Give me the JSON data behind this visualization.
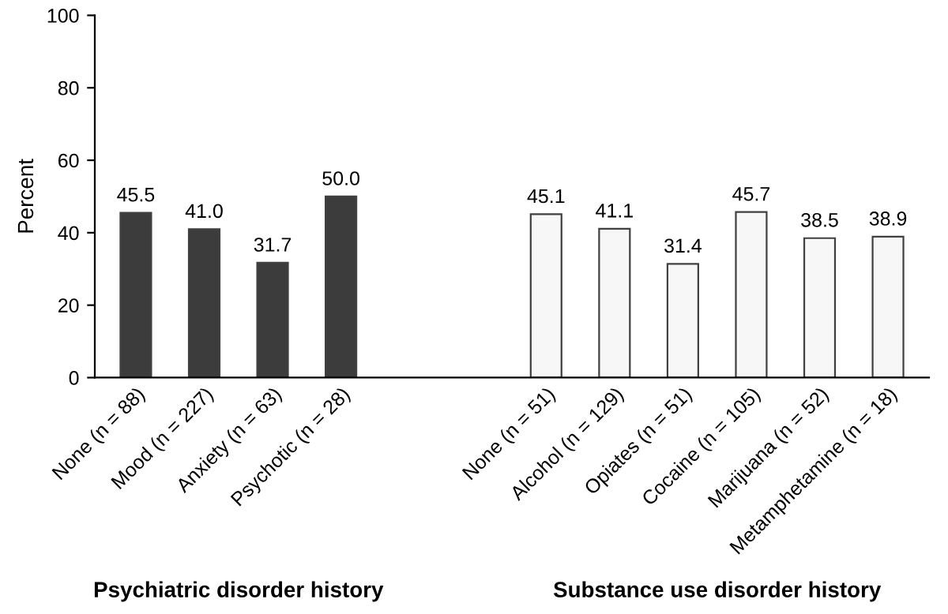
{
  "chart_data": {
    "type": "bar",
    "ylabel": "Percent",
    "categories": [
      "None (n = 88)",
      "Mood (n = 227)",
      "Anxiety (n = 63)",
      "Psychotic (n = 28)",
      null,
      null,
      "None (n = 51)",
      "Alcohol (n = 129)",
      "Opiates (n = 51)",
      "Cocaine (n = 105)",
      "Marijuana (n = 52)",
      "Metamphetamine (n = 18)"
    ],
    "values": [
      45.5,
      41.0,
      31.7,
      50.0,
      null,
      null,
      45.1,
      41.1,
      31.4,
      45.7,
      38.5,
      38.9
    ],
    "value_labels": [
      "45.5",
      "41.0",
      "31.7",
      "50.0",
      null,
      null,
      "45.1",
      "41.1",
      "31.4",
      "45.7",
      "38.5",
      "38.9"
    ],
    "colors": [
      "#3c3c3c",
      "#3c3c3c",
      "#3c3c3c",
      "#3c3c3c",
      null,
      null,
      "#f7f7f7",
      "#f7f7f7",
      "#f7f7f7",
      "#f7f7f7",
      "#f7f7f7",
      "#f7f7f7"
    ],
    "ylim": [
      0,
      100
    ],
    "yticks": [
      0,
      20,
      40,
      60,
      80,
      100
    ],
    "grid": false,
    "legend": false,
    "annotations": [
      "Psychiatric disorder history",
      "Substance use disorder history"
    ]
  }
}
